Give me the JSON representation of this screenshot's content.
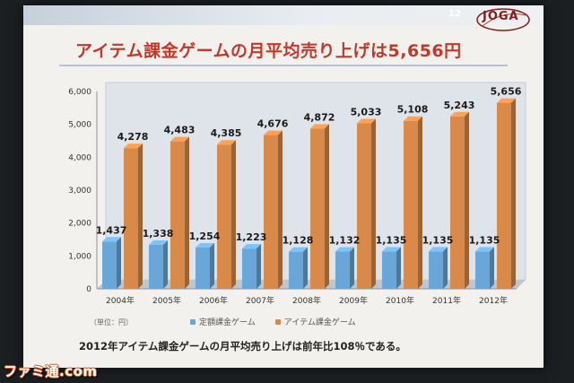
{
  "page": {
    "number": "12",
    "logo_text": "JOGA"
  },
  "title": "アイテム課金ゲームの月平均売り上げは5,656円",
  "unit_note": "（単位：円）",
  "footnote": "2012年アイテム課金ゲームの月平均売り上げは前年比108％である。",
  "watermark": "ファミ通.com",
  "colors": {
    "subscription": "#6aa6d8",
    "item": "#d9894a",
    "title": "#c0392b"
  },
  "chart_data": {
    "type": "bar",
    "categories": [
      "2004年",
      "2005年",
      "2006年",
      "2007年",
      "2008年",
      "2009年",
      "2010年",
      "2011年",
      "2012年"
    ],
    "series": [
      {
        "name": "定額課金ゲーム",
        "values": [
          1437,
          1338,
          1254,
          1223,
          1128,
          1132,
          1135,
          1135,
          1135
        ],
        "labels": [
          "1,437",
          "1,338",
          "1,254",
          "1,223",
          "1,128",
          "1,132",
          "1,135",
          "1,135",
          "1,135"
        ]
      },
      {
        "name": "アイテム課金ゲーム",
        "values": [
          4278,
          4483,
          4385,
          4676,
          4872,
          5033,
          5108,
          5243,
          5656
        ],
        "labels": [
          "4,278",
          "4,483",
          "4,385",
          "4,676",
          "4,872",
          "5,033",
          "5,108",
          "5,243",
          "5,656"
        ]
      }
    ],
    "y_ticks": [
      "0",
      "1,000",
      "2,000",
      "3,000",
      "4,000",
      "5,000",
      "6,000"
    ],
    "ylim": [
      0,
      6000
    ],
    "legend_position": "bottom",
    "grid": false
  }
}
